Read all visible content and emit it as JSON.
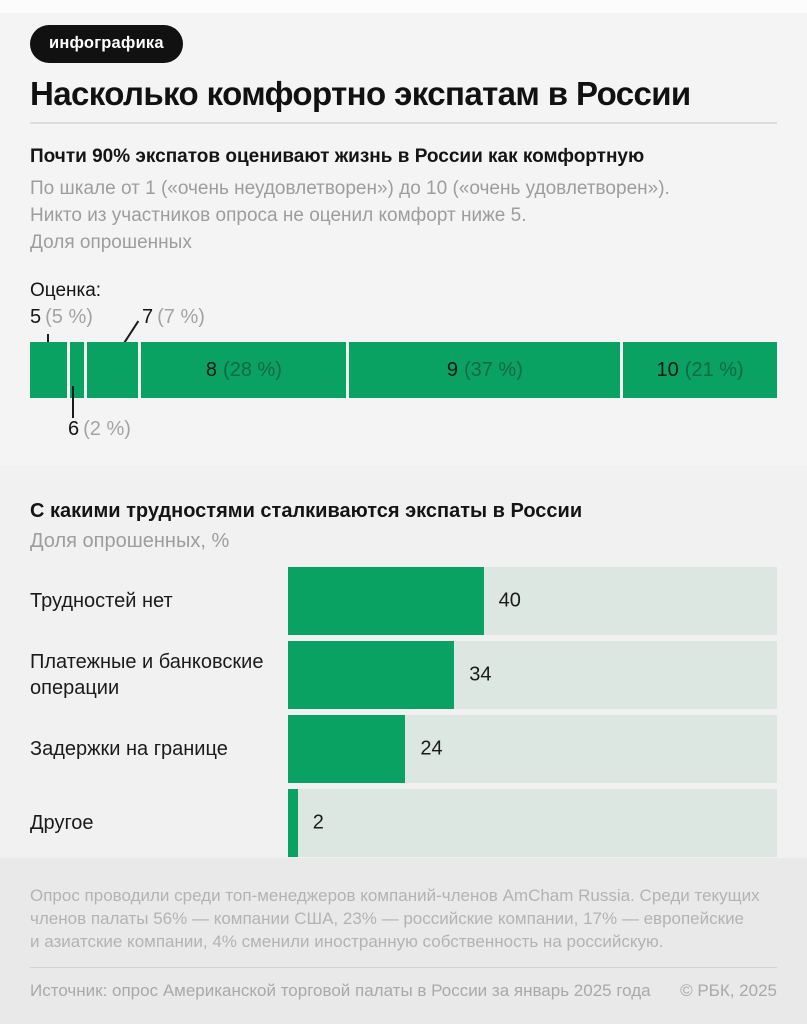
{
  "header": {
    "badge": "инфографика",
    "title": "Насколько комфортно экспатам в России"
  },
  "chart_data": [
    {
      "type": "bar",
      "variant": "stacked-horizontal",
      "title": "Почти 90% экспатов оценивают жизнь в России как комфортную",
      "note_lines": [
        "По шкале от 1 («очень неудовлетворен») до 10 («очень удовлетворен»).",
        "Никто из участников опроса не оценил комфорт ниже 5.",
        "Доля опрошенных"
      ],
      "axis_label": "Оценка:",
      "unit": "%",
      "segments": [
        {
          "score": "5",
          "value": 5,
          "pct_label": "(5 %)",
          "label_position": "above"
        },
        {
          "score": "6",
          "value": 2,
          "pct_label": "(2 %)",
          "label_position": "below"
        },
        {
          "score": "7",
          "value": 7,
          "pct_label": "(7 %)",
          "label_position": "above"
        },
        {
          "score": "8",
          "value": 28,
          "pct_label": "(28 %)",
          "label_position": "inside"
        },
        {
          "score": "9",
          "value": 37,
          "pct_label": "(37 %)",
          "label_position": "inside"
        },
        {
          "score": "10",
          "value": 21,
          "pct_label": "(21 %)",
          "label_position": "inside"
        }
      ]
    },
    {
      "type": "bar",
      "variant": "horizontal",
      "title": "С какими трудностями сталкиваются экспаты в России",
      "unit_label": "Доля опрошенных, %",
      "categories": [
        "Трудностей нет",
        "Платежные и банковские операции",
        "Задержки на границе",
        "Другое"
      ],
      "values": [
        40,
        34,
        24,
        2
      ],
      "xlim": [
        0,
        100
      ],
      "grid": false,
      "legend": false
    }
  ],
  "footer": {
    "note_lines": [
      "Опрос проводили среди топ-менеджеров компаний-членов AmCham Russia. Среди текущих",
      "членов палаты 56% — компании США, 23% — российские компании, 17% — европейские",
      "и азиатские компании, 4% сменили иностранную собственность на российскую."
    ],
    "source": "Источник: опрос Американской торговой палаты в России за январь 2025 года",
    "copyright": "© РБК, 2025"
  },
  "colors": {
    "green": "#0aa263",
    "track_green": "#dbe7e0",
    "badge_bg": "#111111"
  }
}
